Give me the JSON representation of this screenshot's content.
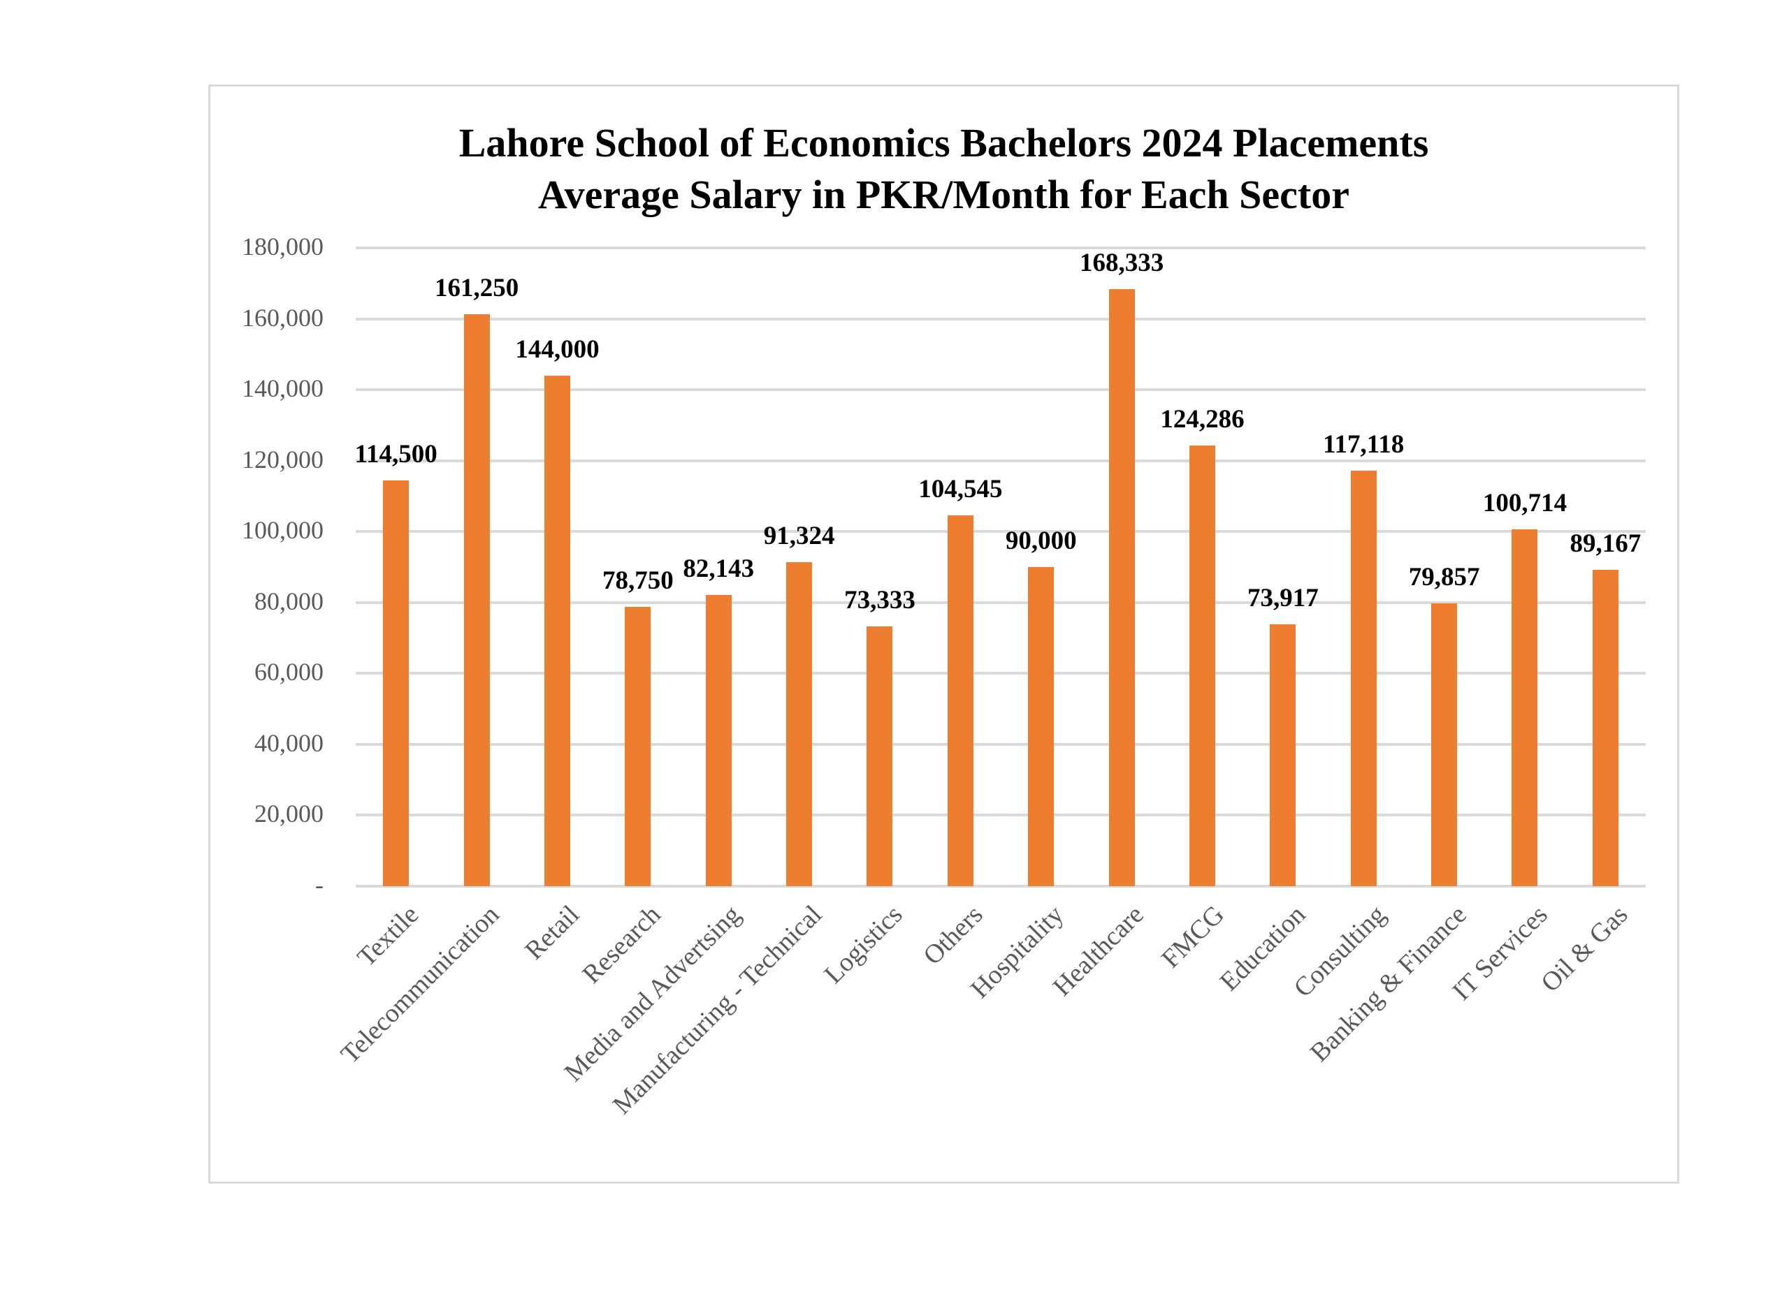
{
  "chart_data": {
    "type": "bar",
    "title": "Lahore School of Economics Bachelors 2024 Placements",
    "subtitle": "Average Salary in PKR/Month for Each Sector",
    "title_lines": [
      "Lahore School of Economics Bachelors 2024 Placements",
      "Average Salary in PKR/Month for Each Sector"
    ],
    "xlabel": "",
    "ylabel": "",
    "ylim": [
      0,
      180000
    ],
    "grid": true,
    "legend": "none",
    "bar_color": "#ED7D31",
    "grid_color": "#D9D9D9",
    "y_ticks": [
      {
        "value": 0,
        "label": "-"
      },
      {
        "value": 20000,
        "label": "20,000"
      },
      {
        "value": 40000,
        "label": "40,000"
      },
      {
        "value": 60000,
        "label": "60,000"
      },
      {
        "value": 80000,
        "label": "80,000"
      },
      {
        "value": 100000,
        "label": "100,000"
      },
      {
        "value": 120000,
        "label": "120,000"
      },
      {
        "value": 140000,
        "label": "140,000"
      },
      {
        "value": 160000,
        "label": "160,000"
      },
      {
        "value": 180000,
        "label": "180,000"
      }
    ],
    "categories": [
      "Textile",
      "Telecommunication",
      "Retail",
      "Research",
      "Media and Advertsing",
      "Manufacturing - Technical",
      "Logistics",
      "Others",
      "Hospitality",
      "Healthcare",
      "FMCG",
      "Education",
      "Consulting",
      "Banking & Finance",
      "IT Services",
      "Oil & Gas"
    ],
    "values": [
      114500,
      161250,
      144000,
      78750,
      82143,
      91324,
      73333,
      104545,
      90000,
      168333,
      124286,
      73917,
      117118,
      79857,
      100714,
      89167
    ],
    "data_labels": [
      "114,500",
      "161,250",
      "144,000",
      "78,750",
      "82,143",
      "91,324",
      "73,333",
      "104,545",
      "90,000",
      "168,333",
      "124,286",
      "73,917",
      "117,118",
      "79,857",
      "100,714",
      "89,167"
    ]
  }
}
